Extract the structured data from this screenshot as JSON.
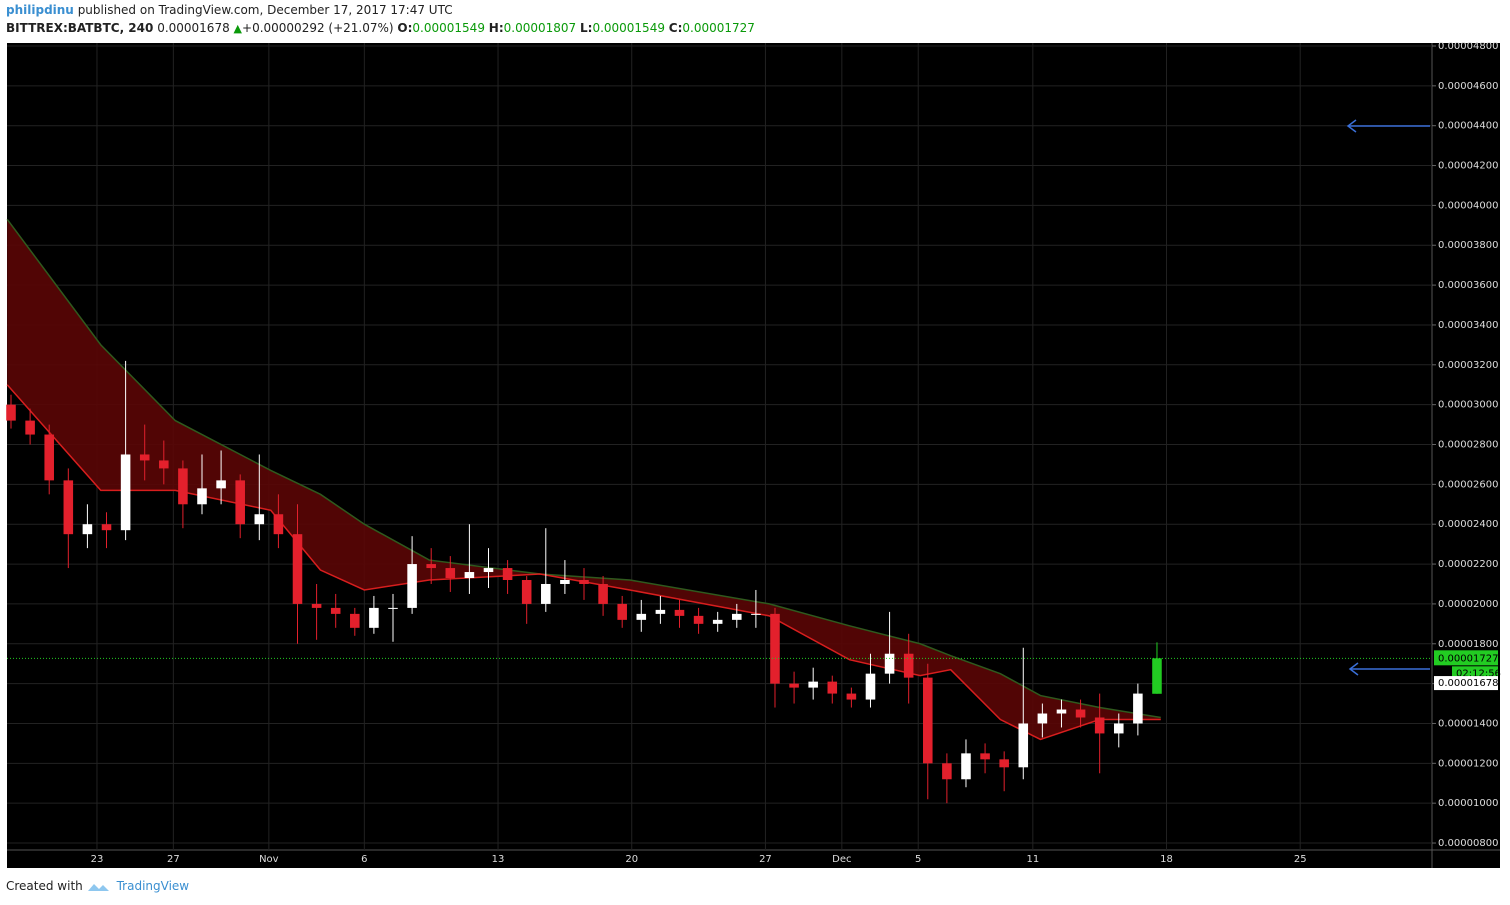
{
  "header": {
    "user": "philipdinu",
    "published": "published on TradingView.com, December 17, 2017 17:47 UTC",
    "symbol": "BITTREX:BATBTC, 240",
    "last": "0.00001678",
    "change": "+0.00000292 (+21.07%)",
    "o_label": "O:",
    "o": "0.00001549",
    "h_label": "H:",
    "h": "0.00001807",
    "l_label": "L:",
    "l": "0.00001549",
    "c_label": "C:",
    "c": "0.00001727"
  },
  "footer": {
    "created": "Created with",
    "brand": "TradingView"
  },
  "chart_data": {
    "type": "candlestick",
    "up_color": "#ffffff",
    "down_color": "#e3202c",
    "live_color": "#22cc22",
    "band_color": "#5a0505",
    "grid": true,
    "xlim": [
      18.29,
      92.9
    ],
    "xticks": [
      23,
      27,
      {
        "value": 32,
        "label": "Nov"
      },
      {
        "value": 37,
        "label": "6"
      },
      {
        "value": 44,
        "label": "13"
      },
      {
        "value": 51,
        "label": "20"
      },
      {
        "value": 58,
        "label": "27"
      },
      {
        "value": 62,
        "label": "Dec"
      },
      {
        "value": 66,
        "label": "5"
      },
      {
        "value": 72,
        "label": "11"
      },
      {
        "value": 79,
        "label": "18"
      },
      {
        "value": 86,
        "label": "25"
      }
    ],
    "ylim": [
      7.65e-06,
      4.815e-05
    ],
    "yticks": [
      {
        "value": 8e-06,
        "label": "0.00000800"
      },
      {
        "value": 1e-05,
        "label": "0.00001000"
      },
      {
        "value": 1.2e-05,
        "label": "0.00001200"
      },
      {
        "value": 1.4e-05,
        "label": "0.00001400"
      },
      {
        "value": 1.6e-05,
        "label": "0.00001600"
      },
      {
        "value": 1.8e-05,
        "label": "0.00001800"
      },
      {
        "value": 2e-05,
        "label": "0.00002000"
      },
      {
        "value": 2.2e-05,
        "label": "0.00002200"
      },
      {
        "value": 2.4e-05,
        "label": "0.00002400"
      },
      {
        "value": 2.6e-05,
        "label": "0.00002600"
      },
      {
        "value": 2.8e-05,
        "label": "0.00002800"
      },
      {
        "value": 3e-05,
        "label": "0.00003000"
      },
      {
        "value": 3.2e-05,
        "label": "0.00003200"
      },
      {
        "value": 3.4e-05,
        "label": "0.00003400"
      },
      {
        "value": 3.6e-05,
        "label": "0.00003600"
      },
      {
        "value": 3.8e-05,
        "label": "0.00003800"
      },
      {
        "value": 4e-05,
        "label": "0.00004000"
      },
      {
        "value": 4.2e-05,
        "label": "0.00004200"
      },
      {
        "value": 4.4e-05,
        "label": "0.00004400"
      },
      {
        "value": 4.6e-05,
        "label": "0.00004600"
      },
      {
        "value": 4.8e-05,
        "label": "0.00004800"
      }
    ],
    "x": [
      18.5,
      19.5,
      20.5,
      21.5,
      22.5,
      23.5,
      24.5,
      25.5,
      26.5,
      27.5,
      28.5,
      29.5,
      30.5,
      31.5,
      32.5,
      33.5,
      34.5,
      35.5,
      36.5,
      37.5,
      38.5,
      39.5,
      40.5,
      41.5,
      42.5,
      43.5,
      44.5,
      45.5,
      46.5,
      47.5,
      48.5,
      49.5,
      50.5,
      51.5,
      52.5,
      53.5,
      54.5,
      55.5,
      56.5,
      57.5,
      58.5,
      59.5,
      60.5,
      61.5,
      62.5,
      63.5,
      64.5,
      65.5,
      66.5,
      67.5,
      68.5,
      69.5,
      70.5,
      71.5,
      72.5,
      73.5,
      74.5,
      75.5,
      76.5,
      77.5,
      78.5
    ],
    "open": [
      3e-05,
      2.92e-05,
      2.85e-05,
      2.62e-05,
      2.35e-05,
      2.4e-05,
      2.37e-05,
      2.75e-05,
      2.72e-05,
      2.68e-05,
      2.5e-05,
      2.58e-05,
      2.62e-05,
      2.4e-05,
      2.45e-05,
      2.35e-05,
      2e-05,
      1.98e-05,
      1.95e-05,
      1.88e-05,
      1.98e-05,
      1.98e-05,
      2.2e-05,
      2.18e-05,
      2.13e-05,
      2.16e-05,
      2.18e-05,
      2.12e-05,
      2e-05,
      2.1e-05,
      2.12e-05,
      2.1e-05,
      2e-05,
      1.92e-05,
      1.95e-05,
      1.97e-05,
      1.94e-05,
      1.9e-05,
      1.92e-05,
      1.95e-05,
      1.95e-05,
      1.6e-05,
      1.58e-05,
      1.61e-05,
      1.55e-05,
      1.52e-05,
      1.65e-05,
      1.75e-05,
      1.63e-05,
      1.2e-05,
      1.12e-05,
      1.25e-05,
      1.22e-05,
      1.18e-05,
      1.4e-05,
      1.45e-05,
      1.47e-05,
      1.43e-05,
      1.35e-05,
      1.4e-05,
      1.549e-05
    ],
    "high": [
      3.05e-05,
      2.98e-05,
      2.9e-05,
      2.68e-05,
      2.5e-05,
      2.46e-05,
      3.22e-05,
      2.9e-05,
      2.82e-05,
      2.72e-05,
      2.75e-05,
      2.77e-05,
      2.65e-05,
      2.75e-05,
      2.55e-05,
      2.5e-05,
      2.1e-05,
      2.05e-05,
      1.98e-05,
      2.04e-05,
      2.05e-05,
      2.34e-05,
      2.28e-05,
      2.24e-05,
      2.4e-05,
      2.28e-05,
      2.22e-05,
      2.14e-05,
      2.38e-05,
      2.22e-05,
      2.18e-05,
      2.14e-05,
      2.04e-05,
      2.02e-05,
      2.04e-05,
      2.02e-05,
      1.98e-05,
      1.96e-05,
      2e-05,
      2.07e-05,
      1.98e-05,
      1.66e-05,
      1.68e-05,
      1.64e-05,
      1.58e-05,
      1.75e-05,
      1.96e-05,
      1.85e-05,
      1.7e-05,
      1.25e-05,
      1.32e-05,
      1.3e-05,
      1.26e-05,
      1.78e-05,
      1.5e-05,
      1.52e-05,
      1.52e-05,
      1.55e-05,
      1.45e-05,
      1.6e-05,
      1.807e-05
    ],
    "low": [
      2.88e-05,
      2.8e-05,
      2.55e-05,
      2.18e-05,
      2.28e-05,
      2.28e-05,
      2.32e-05,
      2.62e-05,
      2.6e-05,
      2.38e-05,
      2.45e-05,
      2.5e-05,
      2.33e-05,
      2.32e-05,
      2.28e-05,
      1.8e-05,
      1.82e-05,
      1.88e-05,
      1.84e-05,
      1.85e-05,
      1.81e-05,
      1.95e-05,
      2.1e-05,
      2.06e-05,
      2.05e-05,
      2.08e-05,
      2.05e-05,
      1.9e-05,
      1.96e-05,
      2.05e-05,
      2.02e-05,
      1.94e-05,
      1.88e-05,
      1.86e-05,
      1.9e-05,
      1.88e-05,
      1.85e-05,
      1.86e-05,
      1.88e-05,
      1.88e-05,
      1.48e-05,
      1.5e-05,
      1.52e-05,
      1.5e-05,
      1.48e-05,
      1.48e-05,
      1.6e-05,
      1.5e-05,
      1.02e-05,
      1e-05,
      1.08e-05,
      1.15e-05,
      1.06e-05,
      1.12e-05,
      1.33e-05,
      1.38e-05,
      1.38e-05,
      1.15e-05,
      1.28e-05,
      1.34e-05,
      1.549e-05
    ],
    "close": [
      2.92e-05,
      2.85e-05,
      2.62e-05,
      2.35e-05,
      2.4e-05,
      2.37e-05,
      2.75e-05,
      2.72e-05,
      2.68e-05,
      2.5e-05,
      2.58e-05,
      2.62e-05,
      2.4e-05,
      2.45e-05,
      2.35e-05,
      2e-05,
      1.98e-05,
      1.95e-05,
      1.88e-05,
      1.98e-05,
      1.98e-05,
      2.2e-05,
      2.18e-05,
      2.13e-05,
      2.16e-05,
      2.18e-05,
      2.12e-05,
      2e-05,
      2.1e-05,
      2.12e-05,
      2.1e-05,
      2e-05,
      1.92e-05,
      1.95e-05,
      1.97e-05,
      1.94e-05,
      1.9e-05,
      1.92e-05,
      1.95e-05,
      1.95e-05,
      1.6e-05,
      1.58e-05,
      1.61e-05,
      1.55e-05,
      1.52e-05,
      1.65e-05,
      1.75e-05,
      1.63e-05,
      1.2e-05,
      1.12e-05,
      1.25e-05,
      1.22e-05,
      1.18e-05,
      1.4e-05,
      1.45e-05,
      1.47e-05,
      1.43e-05,
      1.35e-05,
      1.4e-05,
      1.55e-05,
      1.727e-05
    ],
    "ma_x": [
      18.3,
      23.2,
      27.1,
      32.1,
      34.7,
      37.0,
      40.4,
      46.2,
      50.9,
      58.2,
      62.4,
      66.1,
      67.7,
      70.3,
      72.4,
      75.5,
      78.7
    ],
    "ma_series": [
      {
        "color": "#2f5a1e",
        "values": [
          3.93e-05,
          3.3e-05,
          2.92e-05,
          2.67e-05,
          2.55e-05,
          2.4e-05,
          2.22e-05,
          2.15e-05,
          2.12e-05,
          2e-05,
          1.89e-05,
          1.8e-05,
          1.74e-05,
          1.65e-05,
          1.54e-05,
          1.48e-05,
          1.43e-05
        ]
      },
      {
        "color": "#d81e1e",
        "values": [
          3.1e-05,
          2.57e-05,
          2.57e-05,
          2.47e-05,
          2.17e-05,
          2.07e-05,
          2.12e-05,
          2.15e-05,
          2.07e-05,
          1.94e-05,
          1.72e-05,
          1.64e-05,
          1.67e-05,
          1.42e-05,
          1.32e-05,
          1.42e-05,
          1.42e-05
        ]
      }
    ],
    "price_line": {
      "value": 1.727e-05,
      "label": "0.00001727",
      "countdown": "02:12:56",
      "color": "#22cc22"
    },
    "last_label": {
      "value": 1.678e-05,
      "label": "0.00001678"
    }
  }
}
